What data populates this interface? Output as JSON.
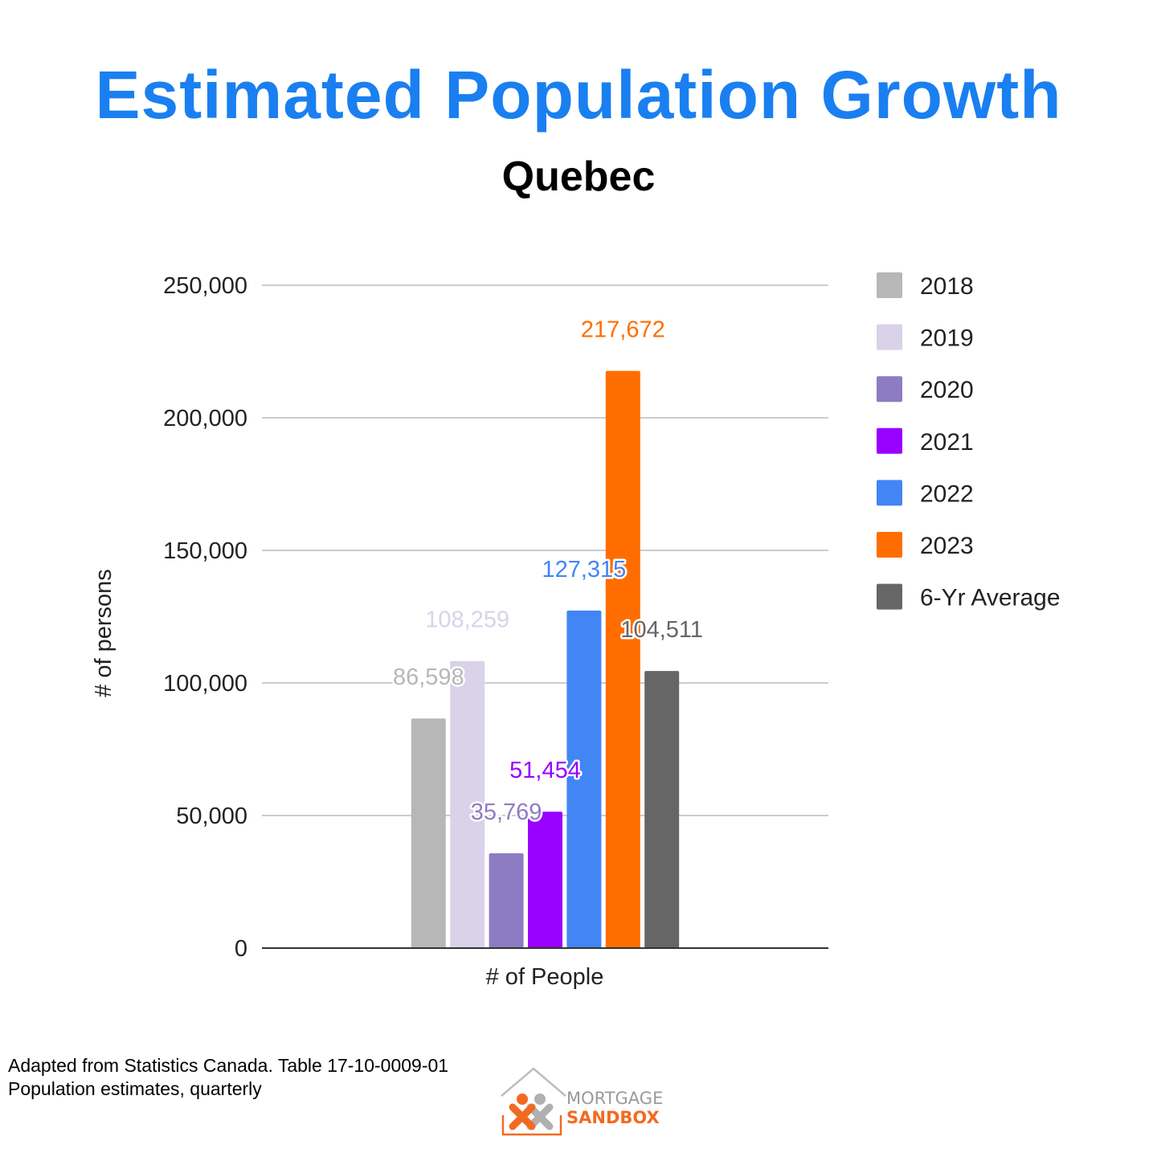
{
  "title": "Estimated Population Growth",
  "subtitle": "Quebec",
  "source": {
    "line1": "Adapted from Statistics Canada. Table 17-10-0009-01",
    "line2": "Population estimates, quarterly"
  },
  "logo": {
    "line1": "MORTGAGE",
    "line2": "SANDBOX",
    "colors": {
      "orange": "#f26a21",
      "gray": "#9a9a9a"
    }
  },
  "chart_data": {
    "type": "bar",
    "categories": [
      "# of People"
    ],
    "xlabel": "# of People",
    "ylabel": "# of persons",
    "ylim": [
      0,
      250000
    ],
    "yticks": [
      0,
      50000,
      100000,
      150000,
      200000,
      250000
    ],
    "ytick_labels": [
      "0",
      "50,000",
      "100,000",
      "150,000",
      "200,000",
      "250,000"
    ],
    "grid": true,
    "legend_position": "right",
    "series": [
      {
        "name": "2018",
        "values": [
          86598
        ],
        "label": "86,598",
        "color": "#b7b7b7"
      },
      {
        "name": "2019",
        "values": [
          108259
        ],
        "label": "108,259",
        "color": "#d9d2e9"
      },
      {
        "name": "2020",
        "values": [
          35769
        ],
        "label": "35,769",
        "color": "#8e7cc3"
      },
      {
        "name": "2021",
        "values": [
          51454
        ],
        "label": "51,454",
        "color": "#9900ff"
      },
      {
        "name": "2022",
        "values": [
          127315
        ],
        "label": "127,315",
        "color": "#4285f4"
      },
      {
        "name": "2023",
        "values": [
          217672
        ],
        "label": "217,672",
        "color": "#ff6d01"
      },
      {
        "name": "6-Yr Average",
        "values": [
          104511
        ],
        "label": "104,511",
        "color": "#666666"
      }
    ]
  }
}
